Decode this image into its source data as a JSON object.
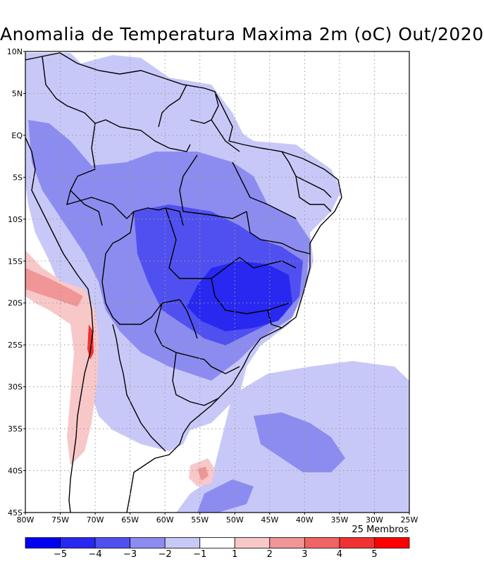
{
  "title": "Anomalia de Temperatura Maxima 2m (oC) Out/2020",
  "members_label": "25 Membros",
  "lat_ticks": [
    {
      "deg": 10,
      "label": "10N"
    },
    {
      "deg": 5,
      "label": "5N"
    },
    {
      "deg": 0,
      "label": "EQ"
    },
    {
      "deg": -5,
      "label": "5S"
    },
    {
      "deg": -10,
      "label": "10S"
    },
    {
      "deg": -15,
      "label": "15S"
    },
    {
      "deg": -20,
      "label": "20S"
    },
    {
      "deg": -25,
      "label": "25S"
    },
    {
      "deg": -30,
      "label": "30S"
    },
    {
      "deg": -35,
      "label": "35S"
    },
    {
      "deg": -40,
      "label": "40S"
    },
    {
      "deg": -45,
      "label": "45S"
    }
  ],
  "lon_ticks": [
    {
      "deg": -80,
      "label": "80W"
    },
    {
      "deg": -75,
      "label": "75W"
    },
    {
      "deg": -70,
      "label": "70W"
    },
    {
      "deg": -65,
      "label": "65W"
    },
    {
      "deg": -60,
      "label": "60W"
    },
    {
      "deg": -55,
      "label": "55W"
    },
    {
      "deg": -50,
      "label": "50W"
    },
    {
      "deg": -45,
      "label": "45W"
    },
    {
      "deg": -40,
      "label": "40W"
    },
    {
      "deg": -35,
      "label": "35W"
    },
    {
      "deg": -30,
      "label": "30W"
    },
    {
      "deg": -25,
      "label": "25W"
    }
  ],
  "colorbar": {
    "colors": [
      "#0000f0",
      "#2828f0",
      "#5050f0",
      "#8c8cf0",
      "#c8c8f8",
      "#ffffff",
      "#f8c8c8",
      "#f09696",
      "#f06464",
      "#f03232",
      "#ff0000"
    ],
    "labels": [
      "−5",
      "−4",
      "−3",
      "−2",
      "−1",
      "1",
      "2",
      "3",
      "4",
      "5"
    ]
  }
}
